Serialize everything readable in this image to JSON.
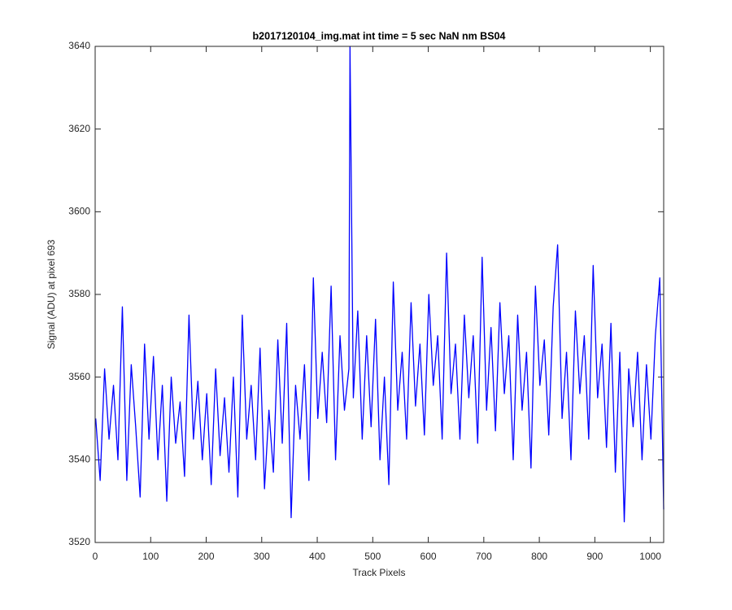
{
  "chart_data": {
    "type": "line",
    "title": "b2017120104_img.mat int time = 5 sec  NaN nm BS04",
    "x_label": "Track Pixels",
    "y_label": "Signal (ADU) at pixel 693",
    "color": "#0000ff",
    "xlim": [
      0,
      1024
    ],
    "ylim": [
      3520,
      3640
    ],
    "xticks": [
      0,
      100,
      200,
      300,
      400,
      500,
      600,
      700,
      800,
      900,
      1000
    ],
    "yticks": [
      3520,
      3540,
      3560,
      3580,
      3600,
      3620,
      3640
    ],
    "x": [
      1,
      9,
      17,
      25,
      33,
      41,
      49,
      57,
      65,
      73,
      81,
      89,
      97,
      105,
      113,
      121,
      129,
      137,
      145,
      153,
      161,
      169,
      177,
      185,
      193,
      201,
      209,
      217,
      225,
      233,
      241,
      249,
      257,
      265,
      273,
      281,
      289,
      297,
      305,
      313,
      321,
      329,
      337,
      345,
      353,
      361,
      369,
      377,
      385,
      393,
      401,
      409,
      417,
      425,
      433,
      441,
      449,
      457,
      459,
      465,
      473,
      481,
      489,
      497,
      505,
      513,
      521,
      529,
      537,
      545,
      553,
      561,
      569,
      577,
      585,
      593,
      601,
      609,
      617,
      625,
      633,
      641,
      649,
      657,
      665,
      673,
      681,
      689,
      697,
      705,
      713,
      721,
      729,
      737,
      745,
      753,
      761,
      769,
      777,
      785,
      793,
      801,
      809,
      817,
      825,
      833,
      841,
      849,
      857,
      865,
      873,
      881,
      889,
      897,
      905,
      913,
      921,
      929,
      937,
      945,
      953,
      961,
      969,
      977,
      985,
      993,
      1001,
      1009,
      1017,
      1024
    ],
    "values": [
      3550,
      3535,
      3562,
      3545,
      3558,
      3540,
      3577,
      3535,
      3563,
      3548,
      3531,
      3568,
      3545,
      3565,
      3540,
      3558,
      3530,
      3560,
      3544,
      3554,
      3536,
      3575,
      3545,
      3559,
      3540,
      3556,
      3534,
      3562,
      3541,
      3555,
      3537,
      3560,
      3531,
      3575,
      3545,
      3558,
      3540,
      3567,
      3533,
      3552,
      3537,
      3569,
      3544,
      3573,
      3526,
      3558,
      3545,
      3563,
      3535,
      3584,
      3550,
      3566,
      3549,
      3582,
      3540,
      3570,
      3552,
      3562,
      3640,
      3555,
      3576,
      3545,
      3570,
      3548,
      3574,
      3540,
      3560,
      3534,
      3583,
      3552,
      3566,
      3545,
      3578,
      3553,
      3568,
      3546,
      3580,
      3558,
      3570,
      3545,
      3590,
      3556,
      3568,
      3545,
      3575,
      3555,
      3570,
      3544,
      3589,
      3552,
      3572,
      3547,
      3578,
      3556,
      3570,
      3540,
      3575,
      3552,
      3566,
      3538,
      3582,
      3558,
      3569,
      3546,
      3577,
      3592,
      3550,
      3566,
      3540,
      3576,
      3556,
      3570,
      3545,
      3587,
      3555,
      3568,
      3543,
      3573,
      3537,
      3566,
      3525,
      3562,
      3548,
      3566,
      3540,
      3563,
      3545,
      3570,
      3584,
      3528
    ]
  }
}
